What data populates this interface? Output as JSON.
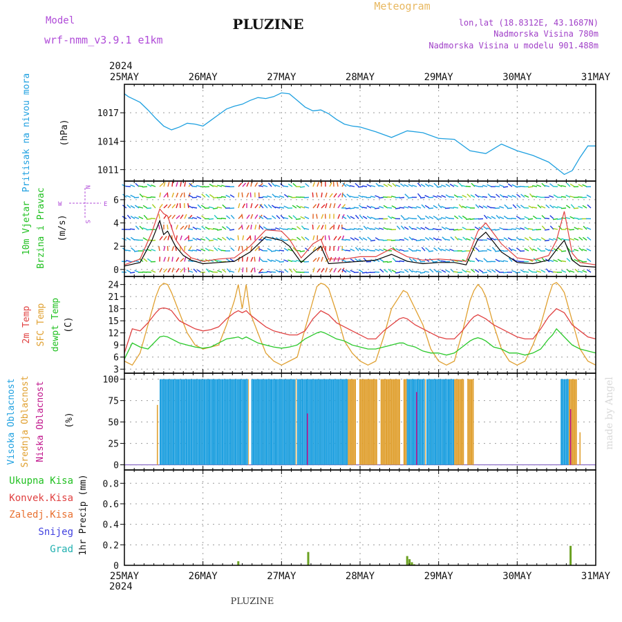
{
  "header": {
    "model_label": "Model",
    "model_name": "wrf-nmm_v3.9.1 e1km",
    "station": "PLUZINE",
    "chart_kind": "Meteogram",
    "coords": "lon,lat (18.8312E, 43.1687N)",
    "elevation": "Nadmorska Visina 780m",
    "model_elevation": "Nadmorska Visina u modelu 901.488m",
    "watermark": "made by Angel",
    "footer_station": "PLUZINE"
  },
  "time_axis": {
    "year": "2024",
    "labels": [
      "25MAY",
      "26MAY",
      "27MAY",
      "28MAY",
      "29MAY",
      "30MAY",
      "31MAY"
    ]
  },
  "colors": {
    "pressure": "#1ea0e0",
    "t2m": "#e04040",
    "sfc": "#e0a030",
    "dewpt": "#28c828",
    "high_cloud": "#1ea0e0",
    "mid_cloud": "#e0a030",
    "low_cloud": "#c0148c",
    "precip": "#6aa020",
    "conv_precip": "#e04040",
    "wind_speed": "#000000",
    "wind_gust": "#e04040",
    "axis_text": "#c040c0"
  },
  "chart_data": [
    {
      "type": "line",
      "panel": "pressure",
      "ylabel_main": "Pritisak na nivou mora",
      "ylabel_unit": "(hPa)",
      "yticks": [
        1011,
        1014,
        1017
      ],
      "ylim": [
        1009.8,
        1020
      ],
      "x_days": [
        0,
        0.05,
        0.1,
        0.2,
        0.3,
        0.4,
        0.5,
        0.6,
        0.7,
        0.8,
        0.9,
        1.0,
        1.1,
        1.2,
        1.3,
        1.4,
        1.5,
        1.6,
        1.7,
        1.8,
        1.9,
        2.0,
        2.1,
        2.2,
        2.3,
        2.4,
        2.5,
        2.6,
        2.7,
        2.8,
        2.9,
        3.0,
        3.2,
        3.4,
        3.6,
        3.8,
        4.0,
        4.2,
        4.4,
        4.6,
        4.8,
        5.0,
        5.2,
        5.4,
        5.6,
        5.7,
        5.8,
        5.9,
        6.0
      ],
      "series": [
        {
          "values": [
            1019.0,
            1018.7,
            1018.5,
            1018.1,
            1017.3,
            1016.4,
            1015.6,
            1015.2,
            1015.5,
            1015.9,
            1015.8,
            1015.6,
            1016.2,
            1016.8,
            1017.4,
            1017.7,
            1017.9,
            1018.3,
            1018.6,
            1018.5,
            1018.7,
            1019.1,
            1019.0,
            1018.3,
            1017.6,
            1017.2,
            1017.3,
            1016.9,
            1016.3,
            1015.8,
            1015.6,
            1015.5,
            1015.0,
            1014.4,
            1015.1,
            1014.9,
            1014.3,
            1014.2,
            1013.0,
            1012.7,
            1013.7,
            1013.0,
            1012.5,
            1011.8,
            1010.5,
            1010.9,
            1012.3,
            1013.5,
            1013.5
          ]
        }
      ]
    },
    {
      "type": "line",
      "panel": "wind",
      "ylabel_main": "10m Vjetar",
      "ylabel_sub": "Brzina i Pravac",
      "ylabel_unit": "(m/s)",
      "compass": [
        "W",
        "E",
        "N",
        "S"
      ],
      "yticks": [
        0,
        2,
        4,
        6
      ],
      "ylim": [
        -0.6,
        7.6
      ],
      "x_days": [
        0,
        0.2,
        0.35,
        0.45,
        0.5,
        0.55,
        0.65,
        0.75,
        0.85,
        1.0,
        1.2,
        1.4,
        1.6,
        1.8,
        2.0,
        2.1,
        2.25,
        2.4,
        2.5,
        2.6,
        2.8,
        3.0,
        3.2,
        3.4,
        3.6,
        3.8,
        4.0,
        4.2,
        4.35,
        4.5,
        4.6,
        4.8,
        5.0,
        5.2,
        5.4,
        5.5,
        5.6,
        5.7,
        5.8,
        6.0
      ],
      "series": [
        {
          "name": "speed",
          "values": [
            0.3,
            0.6,
            2.5,
            4.2,
            3.0,
            3.3,
            2.0,
            1.2,
            0.8,
            0.5,
            0.6,
            0.7,
            1.5,
            2.8,
            2.5,
            2.0,
            0.6,
            1.5,
            2.0,
            0.5,
            0.6,
            0.7,
            0.8,
            1.3,
            0.7,
            0.5,
            0.6,
            0.6,
            0.4,
            2.6,
            3.2,
            1.5,
            0.6,
            0.5,
            0.8,
            1.7,
            2.5,
            0.8,
            0.3,
            0.2
          ]
        },
        {
          "name": "gust",
          "values": [
            0.4,
            0.9,
            3.2,
            5.2,
            4.8,
            4.6,
            2.6,
            1.6,
            1.0,
            0.7,
            0.9,
            1.0,
            2.0,
            3.4,
            3.3,
            2.6,
            1.0,
            2.2,
            2.6,
            0.9,
            0.9,
            1.1,
            1.1,
            1.8,
            1.1,
            0.8,
            0.9,
            0.8,
            0.7,
            3.3,
            4.0,
            2.2,
            1.0,
            0.8,
            1.2,
            2.5,
            5.0,
            1.4,
            0.6,
            0.4
          ]
        }
      ]
    },
    {
      "type": "line",
      "panel": "temperature",
      "ylabel_t2m": "2m Temp",
      "ylabel_sfc": "SFC Temp",
      "ylabel_dew": "dewpt Temp",
      "ylabel_unit": "(C)",
      "yticks": [
        3,
        6,
        9,
        12,
        15,
        18,
        21,
        24
      ],
      "ylim": [
        2,
        26
      ],
      "x_days": [
        0,
        0.1,
        0.2,
        0.3,
        0.4,
        0.45,
        0.5,
        0.55,
        0.6,
        0.7,
        0.8,
        0.9,
        1.0,
        1.1,
        1.2,
        1.3,
        1.4,
        1.45,
        1.5,
        1.55,
        1.6,
        1.7,
        1.8,
        1.9,
        2.0,
        2.1,
        2.2,
        2.3,
        2.4,
        2.45,
        2.5,
        2.55,
        2.6,
        2.7,
        2.8,
        2.9,
        3.0,
        3.1,
        3.2,
        3.3,
        3.4,
        3.5,
        3.55,
        3.6,
        3.7,
        3.8,
        3.9,
        4.0,
        4.1,
        4.2,
        4.3,
        4.4,
        4.45,
        4.5,
        4.55,
        4.6,
        4.7,
        4.8,
        4.9,
        5.0,
        5.1,
        5.2,
        5.3,
        5.4,
        5.45,
        5.5,
        5.55,
        5.6,
        5.7,
        5.8,
        5.9,
        6.0
      ],
      "series": [
        {
          "name": "2m",
          "values": [
            7,
            13,
            12.5,
            14.5,
            17,
            18,
            18.2,
            18,
            17.5,
            15,
            14,
            13,
            12.5,
            12.8,
            13.5,
            15.5,
            17,
            17.5,
            17,
            17.5,
            16.5,
            15,
            13.5,
            12.5,
            12,
            11.5,
            11.5,
            12.5,
            15.5,
            16.5,
            17.5,
            17,
            16.5,
            14.5,
            13.5,
            12.5,
            11.5,
            10.5,
            10.5,
            12.5,
            14,
            15.5,
            15.8,
            15.5,
            14,
            13,
            12,
            11,
            10.5,
            10.5,
            12.5,
            15,
            16,
            16.5,
            16,
            15.5,
            14,
            13,
            12,
            11,
            10.5,
            10.5,
            13,
            16,
            17,
            18,
            17.5,
            17,
            14,
            12.5,
            11,
            10.5
          ]
        },
        {
          "name": "sfc",
          "values": [
            5,
            4,
            7,
            14,
            21,
            23.5,
            24.3,
            24,
            22,
            17,
            12,
            9,
            8,
            8.5,
            9,
            14,
            20,
            24,
            18,
            24,
            17,
            12,
            7,
            5,
            4,
            5,
            6,
            13,
            20,
            23.5,
            24.3,
            24,
            23,
            17,
            10,
            7,
            5,
            4,
            5,
            11,
            18,
            21,
            22.5,
            22,
            18,
            14,
            8,
            5,
            4,
            5,
            12,
            20,
            22.5,
            24,
            23,
            21,
            14,
            8,
            5,
            4,
            5,
            9,
            14,
            21,
            24,
            24.5,
            23.5,
            22,
            15,
            8,
            5,
            4
          ]
        },
        {
          "name": "dew",
          "values": [
            5.5,
            9.5,
            8.5,
            8,
            10,
            11,
            11.2,
            11,
            10.5,
            9.5,
            9,
            8.5,
            8.2,
            8.5,
            9.5,
            10.5,
            10.8,
            11,
            10.5,
            11,
            10.5,
            9.5,
            9,
            8.5,
            8.2,
            8.5,
            9,
            10.5,
            11.5,
            12,
            12.3,
            12,
            11.5,
            10.5,
            10,
            9,
            8.5,
            8,
            8,
            8.5,
            9,
            9.5,
            9.5,
            9,
            8.5,
            7.5,
            7,
            7,
            6.5,
            7,
            8.5,
            10,
            10.5,
            10.8,
            10.5,
            10,
            8.5,
            8,
            7,
            7,
            6.5,
            7,
            8,
            10.5,
            11.5,
            13,
            12,
            11,
            9,
            8,
            7.5,
            7
          ]
        }
      ]
    },
    {
      "type": "bar",
      "panel": "cloud",
      "ylabel_high": "Visoka Oblacnost",
      "ylabel_mid": "Srednja Oblacnost",
      "ylabel_low": "Niska Oblacnost",
      "ylabel_unit": "(%)",
      "yticks": [
        0,
        25,
        50,
        75,
        100
      ],
      "ylim": [
        -6,
        107
      ],
      "cloudy_periods_days": [
        [
          0.45,
          4.6
        ],
        [
          5.55,
          5.75
        ]
      ],
      "gaps_days": [
        [
          1.58,
          1.62
        ],
        [
          2.17,
          2.2
        ],
        [
          2.95,
          2.98
        ],
        [
          3.22,
          3.26
        ],
        [
          3.52,
          3.55
        ],
        [
          3.82,
          3.85
        ],
        [
          4.32,
          4.36
        ],
        [
          4.45,
          4.6
        ]
      ],
      "high_dominant_days": [
        [
          0.45,
          2.85
        ],
        [
          3.6,
          4.2
        ],
        [
          5.55,
          5.65
        ]
      ],
      "low_bars_days": [
        [
          2.33,
          60
        ],
        [
          3.72,
          85
        ],
        [
          5.68,
          65
        ]
      ],
      "mid_singles_days": [
        [
          0.42,
          70
        ],
        [
          5.8,
          38
        ]
      ],
      "series": [
        {
          "name": "high",
          "value_when_cloudy": 100
        },
        {
          "name": "mid",
          "value_when_cloudy": 100
        },
        {
          "name": "low",
          "value_when_cloudy": 0
        }
      ]
    },
    {
      "type": "bar",
      "panel": "precip",
      "labels": [
        "Ukupna Kisa",
        "Konvek.Kisa",
        "Zaledj.Kisa",
        "Snijeg",
        "Grad"
      ],
      "ylabel_unit": "1hr Precip (mm)",
      "yticks": [
        0.2,
        0.4,
        0.6,
        0.8
      ],
      "ylim": [
        0,
        0.93
      ],
      "bars_days": [
        [
          1.45,
          0.04
        ],
        [
          2.34,
          0.13
        ],
        [
          3.6,
          0.09
        ],
        [
          3.63,
          0.06
        ],
        [
          3.66,
          0.03
        ],
        [
          3.69,
          0.01
        ],
        [
          5.68,
          0.19
        ]
      ]
    }
  ]
}
